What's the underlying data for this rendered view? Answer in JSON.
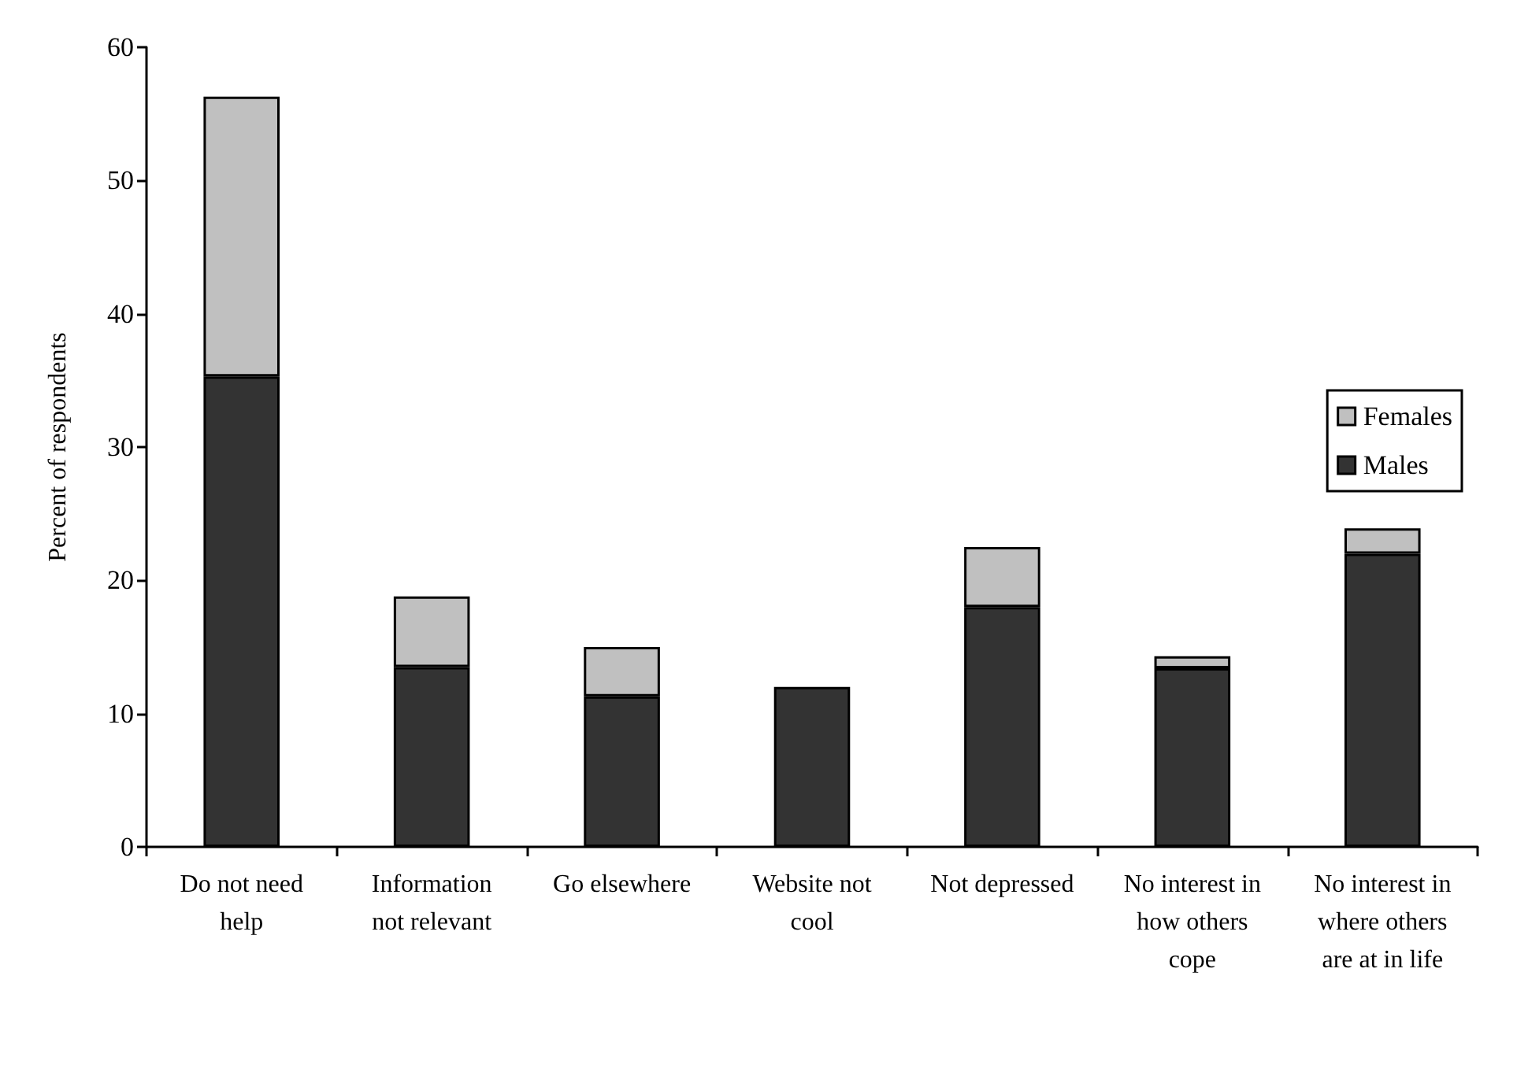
{
  "chart_data": {
    "type": "bar",
    "stacked": true,
    "ylabel": "Percent of respondents",
    "categories": [
      "Do not need help",
      "Information not relevant",
      "Go elsewhere",
      "Website not cool",
      "Not depressed",
      "No interest in how others cope",
      "No interest in where others are at in life"
    ],
    "series": [
      {
        "name": "Males",
        "color": "#333333",
        "values": [
          35.3,
          13.5,
          11.3,
          12.0,
          18.0,
          13.4,
          22.0
        ]
      },
      {
        "name": "Females",
        "color": "#c0c0c0",
        "values": [
          21.0,
          5.3,
          3.7,
          null,
          4.5,
          0.9,
          1.9
        ]
      }
    ],
    "ylim": [
      0,
      60
    ],
    "yticks": [
      0,
      10,
      20,
      30,
      40,
      50,
      60
    ],
    "grid": false,
    "legend": "right"
  }
}
